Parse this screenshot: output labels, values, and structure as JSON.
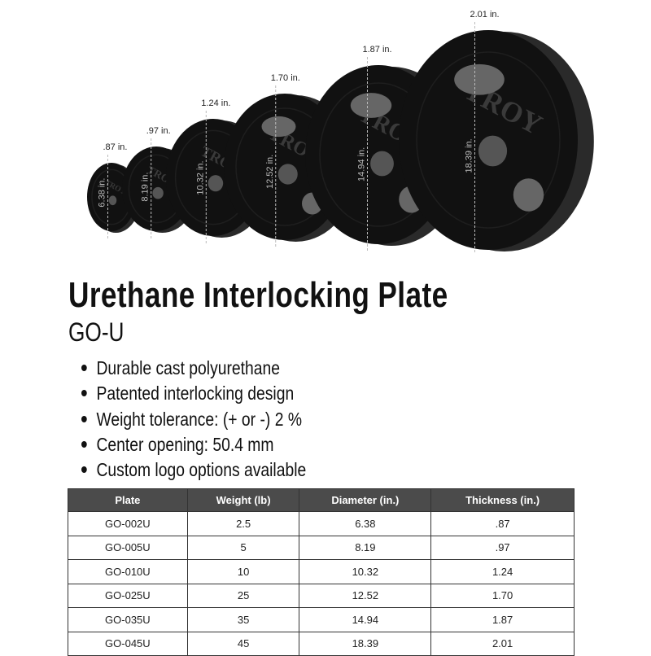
{
  "image": {
    "brand_logo_text": "TROY",
    "plates": [
      {
        "thickness_label": ".87 in.",
        "diameter_label": "6.38 in."
      },
      {
        "thickness_label": ".97 in.",
        "diameter_label": "8.19 in."
      },
      {
        "thickness_label": "1.24 in.",
        "diameter_label": "10.32 in."
      },
      {
        "thickness_label": "1.70 in.",
        "diameter_label": "12.52 in."
      },
      {
        "thickness_label": "1.87 in.",
        "diameter_label": "14.94 in."
      },
      {
        "thickness_label": "2.01 in.",
        "diameter_label": "18.39 in."
      }
    ],
    "plate_color": "#111111"
  },
  "title": "Urethane Interlocking Plate",
  "subtitle": "GO-U",
  "features": [
    "Durable cast polyurethane",
    "Patented interlocking design",
    "Weight tolerance: (+ or -) 2 %",
    "Center opening: 50.4 mm",
    "Custom logo options available"
  ],
  "table": {
    "headers": [
      "Plate",
      "Weight (lb)",
      "Diameter (in.)",
      "Thickness (in.)"
    ],
    "rows": [
      [
        "GO-002U",
        "2.5",
        "6.38",
        ".87"
      ],
      [
        "GO-005U",
        "5",
        "8.19",
        ".97"
      ],
      [
        "GO-010U",
        "10",
        "10.32",
        "1.24"
      ],
      [
        "GO-025U",
        "25",
        "12.52",
        "1.70"
      ],
      [
        "GO-035U",
        "35",
        "14.94",
        "1.87"
      ],
      [
        "GO-045U",
        "45",
        "18.39",
        "2.01"
      ]
    ],
    "header_color": "#4b4b4b"
  }
}
